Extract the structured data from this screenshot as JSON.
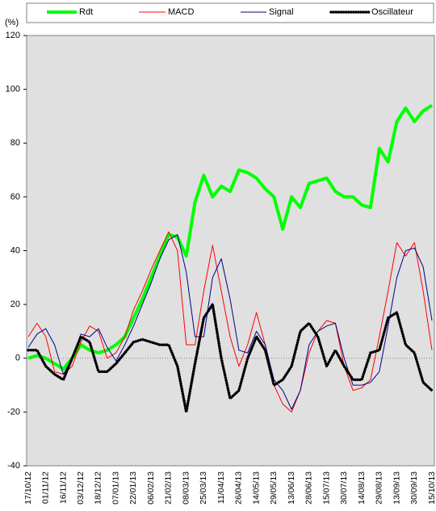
{
  "chart_data": {
    "type": "line",
    "y_label": "(%)",
    "categories": [
      "17/10/12",
      null,
      "01/11/12",
      null,
      "16/11/12",
      null,
      "03/12/12",
      null,
      "18/12/12",
      null,
      "07/01/13",
      null,
      "22/01/13",
      null,
      "06/02/13",
      null,
      "21/02/13",
      null,
      "08/03/13",
      null,
      "25/03/13",
      null,
      "11/04/13",
      null,
      "26/04/13",
      null,
      "14/05/13",
      null,
      "29/05/13",
      null,
      "13/06/13",
      null,
      "28/06/13",
      null,
      "15/07/13",
      null,
      "30/07/13",
      null,
      "14/08/13",
      null,
      "29/08/13",
      null,
      "13/09/13",
      null,
      "30/09/13",
      null,
      "15/10/13"
    ],
    "series": [
      {
        "name": "Rdt",
        "color": "#00ff00",
        "values": [
          0,
          1,
          0,
          -2,
          -4,
          0,
          5,
          3,
          2,
          3,
          5,
          8,
          15,
          22,
          30,
          38,
          46,
          45,
          38,
          58,
          68,
          60,
          64,
          62,
          70,
          69,
          67,
          63,
          60,
          48,
          60,
          56,
          65,
          66,
          67,
          62,
          60,
          60,
          57,
          56,
          78,
          73,
          88,
          93,
          88,
          92,
          94
        ]
      },
      {
        "name": "MACD",
        "color": "#ff0000",
        "values": [
          8,
          13,
          8,
          -5,
          -6,
          -3,
          6,
          12,
          10,
          0,
          2,
          8,
          18,
          25,
          33,
          40,
          47,
          40,
          5,
          5,
          25,
          42,
          25,
          8,
          -3,
          5,
          17,
          5,
          -10,
          -17,
          -20,
          -12,
          2,
          10,
          14,
          13,
          -3,
          -12,
          -11,
          -8,
          8,
          25,
          43,
          38,
          43,
          25,
          3
        ]
      },
      {
        "name": "Signal",
        "color": "#00008b",
        "values": [
          4,
          9,
          11,
          5,
          -6,
          0,
          9,
          8,
          11,
          4,
          -1,
          5,
          12,
          20,
          28,
          37,
          44,
          46,
          32,
          8,
          8,
          30,
          37,
          22,
          3,
          2,
          10,
          5,
          -8,
          -12,
          -19,
          -12,
          5,
          10,
          12,
          13,
          0,
          -10,
          -10,
          -9,
          -5,
          12,
          30,
          40,
          41,
          34,
          14
        ]
      },
      {
        "name": "Oscillateur",
        "color": "#000000",
        "values": [
          3,
          3,
          -3,
          -6,
          -8,
          0,
          8,
          6,
          -5,
          -5,
          -2,
          2,
          6,
          7,
          6,
          5,
          5,
          -3,
          -20,
          -2,
          15,
          20,
          0,
          -15,
          -12,
          0,
          8,
          3,
          -10,
          -8,
          -3,
          10,
          13,
          8,
          -3,
          3,
          -3,
          -8,
          -8,
          2,
          3,
          15,
          17,
          5,
          2,
          -9,
          -12
        ]
      }
    ],
    "ylim": [
      -40,
      120
    ],
    "yticks": [
      -40,
      -20,
      0,
      20,
      40,
      60,
      80,
      100,
      120
    ],
    "zero_line": true,
    "legend": "top",
    "background": "#e0e0e0"
  }
}
